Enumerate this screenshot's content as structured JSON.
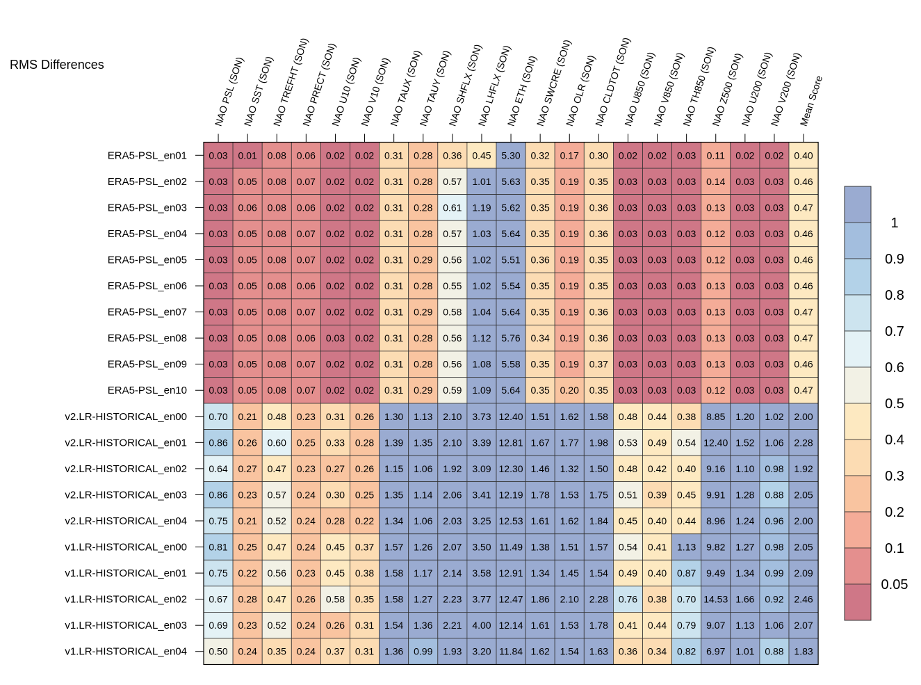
{
  "chart_data": {
    "type": "heatmap",
    "title": "RMS Differences",
    "columns": [
      "NAO PSL (SON)",
      "NAO SST (SON)",
      "NAO TREFHT (SON)",
      "NAO PRECT (SON)",
      "NAO U10 (SON)",
      "NAO V10 (SON)",
      "NAO TAUX (SON)",
      "NAO TAUY (SON)",
      "NAO SHFLX (SON)",
      "NAO LHFLX (SON)",
      "NAO ETH (SON)",
      "NAO SWCRE (SON)",
      "NAO OLR (SON)",
      "NAO CLDTOT (SON)",
      "NAO U850 (SON)",
      "NAO V850 (SON)",
      "NAO TH850 (SON)",
      "NAO Z500 (SON)",
      "NAO U200 (SON)",
      "NAO V200 (SON)",
      "Mean Score"
    ],
    "rows": [
      "ERA5-PSL_en01",
      "ERA5-PSL_en02",
      "ERA5-PSL_en03",
      "ERA5-PSL_en04",
      "ERA5-PSL_en05",
      "ERA5-PSL_en06",
      "ERA5-PSL_en07",
      "ERA5-PSL_en08",
      "ERA5-PSL_en09",
      "ERA5-PSL_en10",
      "v2.LR-HISTORICAL_en00",
      "v2.LR-HISTORICAL_en01",
      "v2.LR-HISTORICAL_en02",
      "v2.LR-HISTORICAL_en03",
      "v2.LR-HISTORICAL_en04",
      "v1.LR-HISTORICAL_en00",
      "v1.LR-HISTORICAL_en01",
      "v1.LR-HISTORICAL_en02",
      "v1.LR-HISTORICAL_en03",
      "v1.LR-HISTORICAL_en04"
    ],
    "values": [
      [
        "0.03",
        "0.01",
        "0.08",
        "0.06",
        "0.02",
        "0.02",
        "0.31",
        "0.28",
        "0.36",
        "0.45",
        "5.30",
        "0.32",
        "0.17",
        "0.30",
        "0.02",
        "0.02",
        "0.03",
        "0.11",
        "0.02",
        "0.02",
        "0.40"
      ],
      [
        "0.03",
        "0.05",
        "0.08",
        "0.07",
        "0.02",
        "0.02",
        "0.31",
        "0.28",
        "0.57",
        "1.01",
        "5.63",
        "0.35",
        "0.19",
        "0.35",
        "0.03",
        "0.03",
        "0.03",
        "0.14",
        "0.03",
        "0.03",
        "0.46"
      ],
      [
        "0.03",
        "0.06",
        "0.08",
        "0.06",
        "0.02",
        "0.02",
        "0.31",
        "0.28",
        "0.61",
        "1.19",
        "5.62",
        "0.35",
        "0.19",
        "0.36",
        "0.03",
        "0.03",
        "0.03",
        "0.13",
        "0.03",
        "0.03",
        "0.47"
      ],
      [
        "0.03",
        "0.05",
        "0.08",
        "0.07",
        "0.02",
        "0.02",
        "0.31",
        "0.28",
        "0.57",
        "1.03",
        "5.64",
        "0.35",
        "0.19",
        "0.36",
        "0.03",
        "0.03",
        "0.03",
        "0.12",
        "0.03",
        "0.03",
        "0.46"
      ],
      [
        "0.03",
        "0.05",
        "0.08",
        "0.07",
        "0.02",
        "0.02",
        "0.31",
        "0.29",
        "0.56",
        "1.02",
        "5.51",
        "0.36",
        "0.19",
        "0.35",
        "0.03",
        "0.03",
        "0.03",
        "0.12",
        "0.03",
        "0.03",
        "0.46"
      ],
      [
        "0.03",
        "0.05",
        "0.08",
        "0.06",
        "0.02",
        "0.02",
        "0.31",
        "0.28",
        "0.55",
        "1.02",
        "5.54",
        "0.35",
        "0.19",
        "0.35",
        "0.03",
        "0.03",
        "0.03",
        "0.13",
        "0.03",
        "0.03",
        "0.46"
      ],
      [
        "0.03",
        "0.05",
        "0.08",
        "0.07",
        "0.02",
        "0.02",
        "0.31",
        "0.29",
        "0.58",
        "1.04",
        "5.64",
        "0.35",
        "0.19",
        "0.36",
        "0.03",
        "0.03",
        "0.03",
        "0.13",
        "0.03",
        "0.03",
        "0.47"
      ],
      [
        "0.03",
        "0.05",
        "0.08",
        "0.06",
        "0.03",
        "0.02",
        "0.31",
        "0.28",
        "0.56",
        "1.12",
        "5.76",
        "0.34",
        "0.19",
        "0.36",
        "0.03",
        "0.03",
        "0.03",
        "0.13",
        "0.03",
        "0.03",
        "0.47"
      ],
      [
        "0.03",
        "0.05",
        "0.08",
        "0.07",
        "0.02",
        "0.02",
        "0.31",
        "0.28",
        "0.56",
        "1.08",
        "5.58",
        "0.35",
        "0.19",
        "0.37",
        "0.03",
        "0.03",
        "0.03",
        "0.13",
        "0.03",
        "0.03",
        "0.46"
      ],
      [
        "0.03",
        "0.05",
        "0.08",
        "0.07",
        "0.02",
        "0.02",
        "0.31",
        "0.29",
        "0.59",
        "1.09",
        "5.64",
        "0.35",
        "0.20",
        "0.35",
        "0.03",
        "0.03",
        "0.03",
        "0.12",
        "0.03",
        "0.03",
        "0.47"
      ],
      [
        "0.70",
        "0.21",
        "0.48",
        "0.23",
        "0.31",
        "0.26",
        "1.30",
        "1.13",
        "2.10",
        "3.73",
        "12.40",
        "1.51",
        "1.62",
        "1.58",
        "0.48",
        "0.44",
        "0.38",
        "8.85",
        "1.20",
        "1.02",
        "2.00"
      ],
      [
        "0.86",
        "0.26",
        "0.60",
        "0.25",
        "0.33",
        "0.28",
        "1.39",
        "1.35",
        "2.10",
        "3.39",
        "12.81",
        "1.67",
        "1.77",
        "1.98",
        "0.53",
        "0.49",
        "0.54",
        "12.40",
        "1.52",
        "1.06",
        "2.28"
      ],
      [
        "0.64",
        "0.27",
        "0.47",
        "0.23",
        "0.27",
        "0.26",
        "1.15",
        "1.06",
        "1.92",
        "3.09",
        "12.30",
        "1.46",
        "1.32",
        "1.50",
        "0.48",
        "0.42",
        "0.40",
        "9.16",
        "1.10",
        "0.98",
        "1.92"
      ],
      [
        "0.86",
        "0.23",
        "0.57",
        "0.24",
        "0.30",
        "0.25",
        "1.35",
        "1.14",
        "2.06",
        "3.41",
        "12.19",
        "1.78",
        "1.53",
        "1.75",
        "0.51",
        "0.39",
        "0.45",
        "9.91",
        "1.28",
        "0.88",
        "2.05"
      ],
      [
        "0.75",
        "0.21",
        "0.52",
        "0.24",
        "0.28",
        "0.22",
        "1.34",
        "1.06",
        "2.03",
        "3.25",
        "12.53",
        "1.61",
        "1.62",
        "1.84",
        "0.45",
        "0.40",
        "0.44",
        "8.96",
        "1.24",
        "0.96",
        "2.00"
      ],
      [
        "0.81",
        "0.25",
        "0.47",
        "0.24",
        "0.45",
        "0.37",
        "1.57",
        "1.26",
        "2.07",
        "3.50",
        "11.49",
        "1.38",
        "1.51",
        "1.57",
        "0.54",
        "0.41",
        "1.13",
        "9.82",
        "1.27",
        "0.98",
        "2.05"
      ],
      [
        "0.75",
        "0.22",
        "0.56",
        "0.23",
        "0.45",
        "0.38",
        "1.58",
        "1.17",
        "2.14",
        "3.58",
        "12.91",
        "1.34",
        "1.45",
        "1.54",
        "0.49",
        "0.40",
        "0.87",
        "9.49",
        "1.34",
        "0.99",
        "2.09"
      ],
      [
        "0.67",
        "0.28",
        "0.47",
        "0.26",
        "0.58",
        "0.35",
        "1.58",
        "1.27",
        "2.23",
        "3.77",
        "12.47",
        "1.86",
        "2.10",
        "2.28",
        "0.76",
        "0.38",
        "0.70",
        "14.53",
        "1.66",
        "0.92",
        "2.46"
      ],
      [
        "0.69",
        "0.23",
        "0.52",
        "0.24",
        "0.26",
        "0.31",
        "1.54",
        "1.36",
        "2.21",
        "4.00",
        "12.14",
        "1.61",
        "1.53",
        "1.78",
        "0.41",
        "0.44",
        "0.79",
        "9.07",
        "1.13",
        "1.06",
        "2.07"
      ],
      [
        "0.50",
        "0.24",
        "0.35",
        "0.24",
        "0.37",
        "0.31",
        "1.36",
        "0.99",
        "1.93",
        "3.20",
        "11.84",
        "1.62",
        "1.54",
        "1.63",
        "0.36",
        "0.34",
        "0.82",
        "6.97",
        "1.01",
        "0.88",
        "1.83"
      ]
    ],
    "colorbar": {
      "tick_labels": [
        "1",
        "0.9",
        "0.8",
        "0.7",
        "0.6",
        "0.5",
        "0.4",
        "0.3",
        "0.2",
        "0.1",
        "0.05"
      ],
      "colors_top_to_bottom": [
        "#9aabd1",
        "#a3bede",
        "#b3d2e8",
        "#cde4ef",
        "#e4f2f6",
        "#f2f1e5",
        "#fde9c1",
        "#fcdcb3",
        "#f9c4a0",
        "#f4ac98",
        "#e48f8e",
        "#cf7787"
      ],
      "bounds_low_to_high": [
        0.05,
        0.1,
        0.2,
        0.3,
        0.4,
        0.5,
        0.6,
        0.7,
        0.8,
        0.9,
        1
      ]
    }
  }
}
